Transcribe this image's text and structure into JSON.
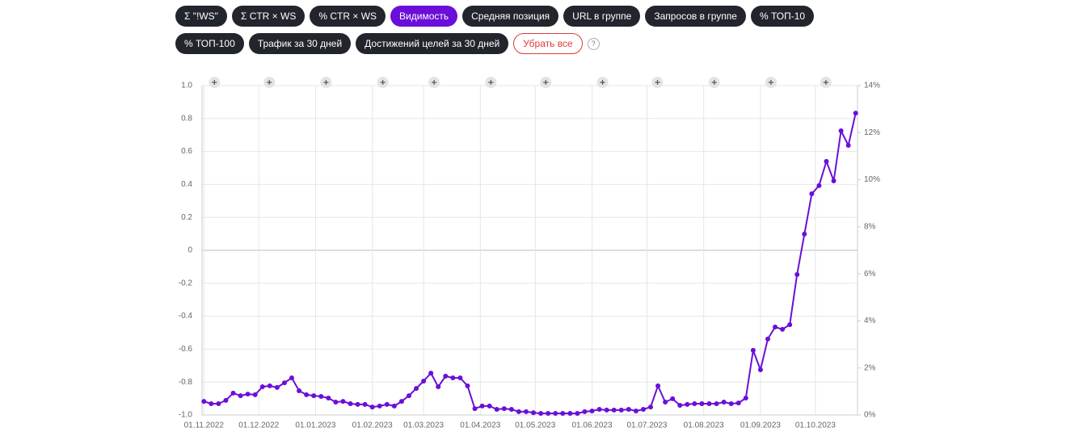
{
  "toolbar": {
    "metrics": [
      {
        "label": "Σ \"!WS\"",
        "active": false
      },
      {
        "label": "Σ CTR × WS",
        "active": false
      },
      {
        "label": "% CTR × WS",
        "active": false
      },
      {
        "label": "Видимость",
        "active": true
      },
      {
        "label": "Средняя позиция",
        "active": false
      },
      {
        "label": "URL в группе",
        "active": false
      },
      {
        "label": "Запросов в группе",
        "active": false
      },
      {
        "label": "% ТОП-10",
        "active": false
      },
      {
        "label": "% ТОП-100",
        "active": false
      },
      {
        "label": "Трафик за 30 дней",
        "active": false
      },
      {
        "label": "Достижений целей за 30 дней",
        "active": false
      }
    ],
    "clear": "Убрать все",
    "help": "?"
  },
  "chart_data": {
    "type": "line",
    "x": [
      "01.11.2022",
      "05.11.2022",
      "09.11.2022",
      "13.11.2022",
      "17.11.2022",
      "21.11.2022",
      "25.11.2022",
      "29.11.2022",
      "03.12.2022",
      "07.12.2022",
      "11.12.2022",
      "15.12.2022",
      "19.12.2022",
      "23.12.2022",
      "27.12.2022",
      "31.12.2022",
      "04.01.2023",
      "08.01.2023",
      "12.01.2023",
      "16.01.2023",
      "20.01.2023",
      "24.01.2023",
      "28.01.2023",
      "01.02.2023",
      "05.02.2023",
      "09.02.2023",
      "13.02.2023",
      "17.02.2023",
      "21.02.2023",
      "25.02.2023",
      "01.03.2023",
      "05.03.2023",
      "09.03.2023",
      "13.03.2023",
      "17.03.2023",
      "21.03.2023",
      "25.03.2023",
      "29.03.2023",
      "02.04.2023",
      "06.04.2023",
      "10.04.2023",
      "14.04.2023",
      "18.04.2023",
      "22.04.2023",
      "26.04.2023",
      "30.04.2023",
      "04.05.2023",
      "08.05.2023",
      "12.05.2023",
      "16.05.2023",
      "20.05.2023",
      "24.05.2023",
      "28.05.2023",
      "01.06.2023",
      "05.06.2023",
      "09.06.2023",
      "13.06.2023",
      "17.06.2023",
      "21.06.2023",
      "25.06.2023",
      "29.06.2023",
      "03.07.2023",
      "07.07.2023",
      "11.07.2023",
      "15.07.2023",
      "19.07.2023",
      "23.07.2023",
      "27.07.2023",
      "31.07.2023",
      "04.08.2023",
      "08.08.2023",
      "12.08.2023",
      "16.08.2023",
      "20.08.2023",
      "24.08.2023",
      "28.08.2023",
      "01.09.2023",
      "05.09.2023",
      "09.09.2023",
      "13.09.2023",
      "17.09.2023",
      "21.09.2023",
      "25.09.2023",
      "29.09.2023",
      "03.10.2023",
      "07.10.2023",
      "11.10.2023",
      "15.10.2023",
      "19.10.2023",
      "23.10.2023"
    ],
    "series": [
      {
        "color": "#6b0fd8",
        "axis": "y2",
        "values": [
          0.58,
          0.48,
          0.48,
          0.62,
          0.93,
          0.82,
          0.89,
          0.86,
          1.2,
          1.24,
          1.17,
          1.37,
          1.58,
          1.03,
          0.86,
          0.82,
          0.79,
          0.72,
          0.55,
          0.58,
          0.48,
          0.45,
          0.45,
          0.34,
          0.38,
          0.45,
          0.38,
          0.58,
          0.82,
          1.13,
          1.44,
          1.78,
          1.2,
          1.65,
          1.58,
          1.58,
          1.24,
          0.27,
          0.38,
          0.38,
          0.24,
          0.27,
          0.24,
          0.14,
          0.14,
          0.1,
          0.07,
          0.07,
          0.07,
          0.07,
          0.07,
          0.07,
          0.14,
          0.17,
          0.24,
          0.21,
          0.21,
          0.21,
          0.24,
          0.17,
          0.24,
          0.34,
          1.24,
          0.55,
          0.69,
          0.41,
          0.45,
          0.48,
          0.48,
          0.48,
          0.48,
          0.55,
          0.48,
          0.51,
          0.72,
          2.75,
          1.92,
          3.23,
          3.74,
          3.64,
          3.84,
          5.97,
          7.69,
          9.4,
          9.75,
          10.78,
          9.95,
          12.08,
          11.46,
          12.83
        ]
      }
    ],
    "xlim": [
      "31.10.2022",
      "24.10.2023"
    ],
    "xticks": [
      "01.11.2022",
      "01.12.2022",
      "01.01.2023",
      "01.02.2023",
      "01.03.2023",
      "01.04.2023",
      "01.05.2023",
      "01.06.2023",
      "01.07.2023",
      "01.08.2023",
      "01.09.2023",
      "01.10.2023"
    ],
    "ylim": [
      -1,
      1
    ],
    "yticks": [
      {
        "value": 1,
        "label": "1.0"
      },
      0.8,
      0.6,
      0.4,
      0.2,
      0,
      -0.2,
      -0.4,
      -0.6,
      -0.8,
      {
        "value": -1,
        "label": "-1.0"
      }
    ],
    "y2lim": [
      0,
      14
    ],
    "y2ticks": [
      {
        "value": 0,
        "label": "0%"
      },
      {
        "value": 2,
        "label": "2%"
      },
      {
        "value": 4,
        "label": "4%"
      },
      {
        "value": 6,
        "label": "6%"
      },
      {
        "value": 8,
        "label": "8%"
      },
      {
        "value": 10,
        "label": "10%"
      },
      {
        "value": 12,
        "label": "12%"
      },
      {
        "value": 14,
        "label": "14%"
      }
    ],
    "grid": true
  }
}
